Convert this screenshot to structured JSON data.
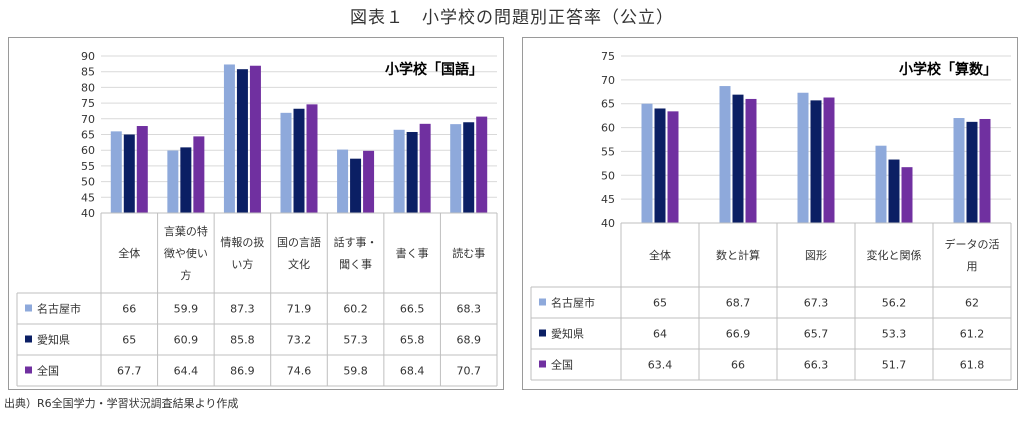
{
  "page_title": "図表１　小学校の問題別正答率（公立）",
  "source_note": "出典）R6全国学力・学習状況調査結果より作成",
  "colors": {
    "名古屋市": "#8EA9DB",
    "愛知県": "#0B1F64",
    "全国": "#7030A0"
  },
  "chart_data": [
    {
      "type": "bar",
      "title": "小学校「国語」",
      "ylim": [
        40,
        90
      ],
      "yticks": [
        40,
        45,
        50,
        55,
        60,
        65,
        70,
        75,
        80,
        85,
        90
      ],
      "categories": [
        [
          "全体"
        ],
        [
          "言葉の特",
          "徴や使い",
          "方"
        ],
        [
          "情報の扱",
          "い方"
        ],
        [
          "国の言語",
          "文化"
        ],
        [
          "話す事・",
          "聞く事"
        ],
        [
          "書く事"
        ],
        [
          "読む事"
        ]
      ],
      "series": [
        {
          "name": "名古屋市",
          "values": [
            66,
            59.9,
            87.3,
            71.9,
            60.2,
            66.5,
            68.3
          ]
        },
        {
          "name": "愛知県",
          "values": [
            65,
            60.9,
            85.8,
            73.2,
            57.3,
            65.8,
            68.9
          ]
        },
        {
          "name": "全国",
          "values": [
            67.7,
            64.4,
            86.9,
            74.6,
            59.8,
            68.4,
            70.7
          ]
        }
      ]
    },
    {
      "type": "bar",
      "title": "小学校「算数」",
      "ylim": [
        40,
        75
      ],
      "yticks": [
        40,
        45,
        50,
        55,
        60,
        65,
        70,
        75
      ],
      "categories": [
        [
          "全体"
        ],
        [
          "数と計算"
        ],
        [
          "図形"
        ],
        [
          "変化と関係"
        ],
        [
          "データの活",
          "用"
        ]
      ],
      "series": [
        {
          "name": "名古屋市",
          "values": [
            65,
            68.7,
            67.3,
            56.2,
            62
          ]
        },
        {
          "name": "愛知県",
          "values": [
            64,
            66.9,
            65.7,
            53.3,
            61.2
          ]
        },
        {
          "name": "全国",
          "values": [
            63.4,
            66,
            66.3,
            51.7,
            61.8
          ]
        }
      ]
    }
  ]
}
